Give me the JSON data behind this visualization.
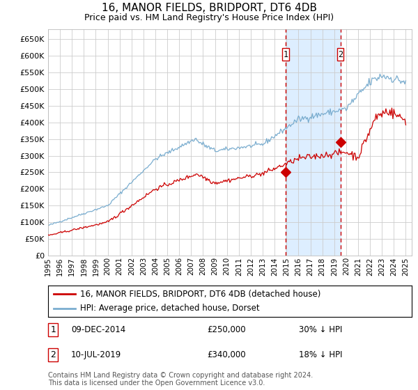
{
  "title": "16, MANOR FIELDS, BRIDPORT, DT6 4DB",
  "subtitle": "Price paid vs. HM Land Registry's House Price Index (HPI)",
  "legend_line1": "16, MANOR FIELDS, BRIDPORT, DT6 4DB (detached house)",
  "legend_line2": "HPI: Average price, detached house, Dorset",
  "table_rows": [
    {
      "num": "1",
      "date": "09-DEC-2014",
      "price": "£250,000",
      "pct": "30% ↓ HPI"
    },
    {
      "num": "2",
      "date": "10-JUL-2019",
      "price": "£340,000",
      "pct": "18% ↓ HPI"
    }
  ],
  "footnote": "Contains HM Land Registry data © Crown copyright and database right 2024.\nThis data is licensed under the Open Government Licence v3.0.",
  "sale1_x": 2014.93,
  "sale1_y": 250000,
  "sale2_x": 2019.52,
  "sale2_y": 340000,
  "red_line_color": "#cc0000",
  "blue_line_color": "#7aadcf",
  "shade_color": "#ddeeff",
  "dashed_color": "#cc0000",
  "background_color": "#ffffff",
  "grid_color": "#cccccc",
  "ylim": [
    0,
    680000
  ],
  "xlim": [
    1995.0,
    2025.5
  ],
  "ytick_vals": [
    0,
    50000,
    100000,
    150000,
    200000,
    250000,
    300000,
    350000,
    400000,
    450000,
    500000,
    550000,
    600000,
    650000
  ],
  "ytick_labels": [
    "£0",
    "£50K",
    "£100K",
    "£150K",
    "£200K",
    "£250K",
    "£300K",
    "£350K",
    "£400K",
    "£450K",
    "£500K",
    "£550K",
    "£600K",
    "£650K"
  ],
  "xtick_vals": [
    1995,
    1996,
    1997,
    1998,
    1999,
    2000,
    2001,
    2002,
    2003,
    2004,
    2005,
    2006,
    2007,
    2008,
    2009,
    2010,
    2011,
    2012,
    2013,
    2014,
    2015,
    2016,
    2017,
    2018,
    2019,
    2020,
    2021,
    2022,
    2023,
    2024,
    2025
  ],
  "title_fontsize": 11,
  "subtitle_fontsize": 9,
  "tick_fontsize": 8,
  "legend_fontsize": 8.5,
  "table_fontsize": 8.5,
  "footnote_fontsize": 7
}
